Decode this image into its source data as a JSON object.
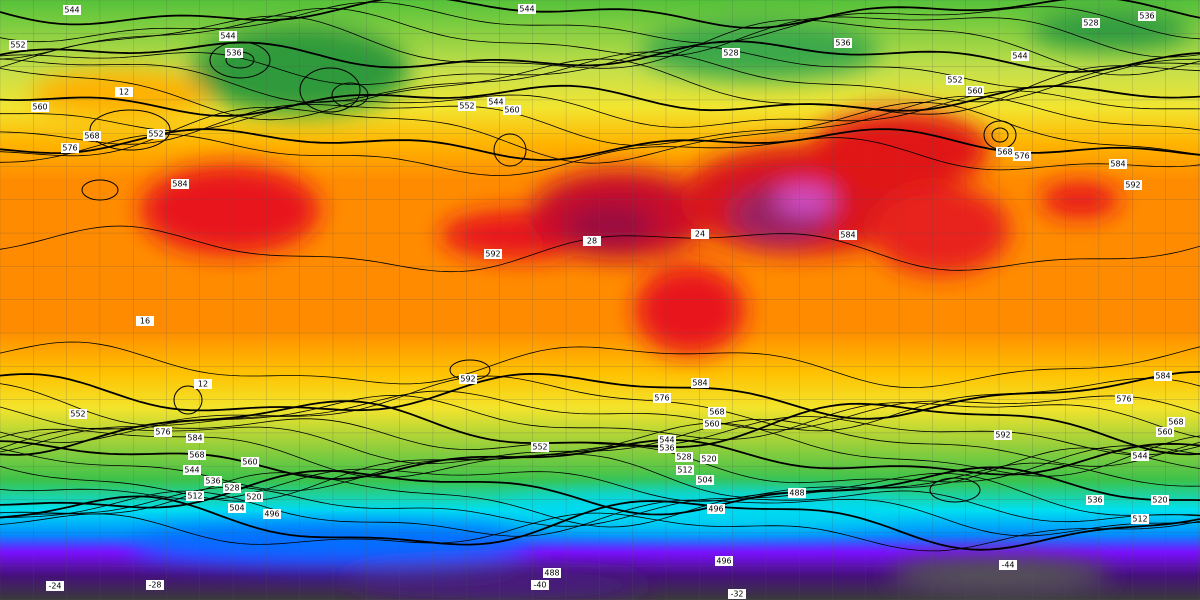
{
  "map": {
    "labels": [
      544,
      544,
      552,
      544,
      536,
      560,
      568,
      552,
      576,
      584,
      552,
      544,
      560,
      528,
      536,
      528,
      536,
      544,
      552,
      560,
      568,
      576,
      584,
      592,
      592,
      584,
      592,
      584,
      576,
      568,
      560,
      552,
      576,
      584,
      560,
      552,
      544,
      536,
      528,
      520,
      512,
      504,
      496,
      488,
      568,
      544,
      536,
      528,
      520,
      512,
      504,
      496,
      488,
      496,
      584,
      576,
      592,
      560,
      568,
      544,
      536,
      512,
      520,
      28,
      24,
      16,
      12,
      12,
      -40,
      -44,
      -32,
      -28,
      -24
    ]
  }
}
